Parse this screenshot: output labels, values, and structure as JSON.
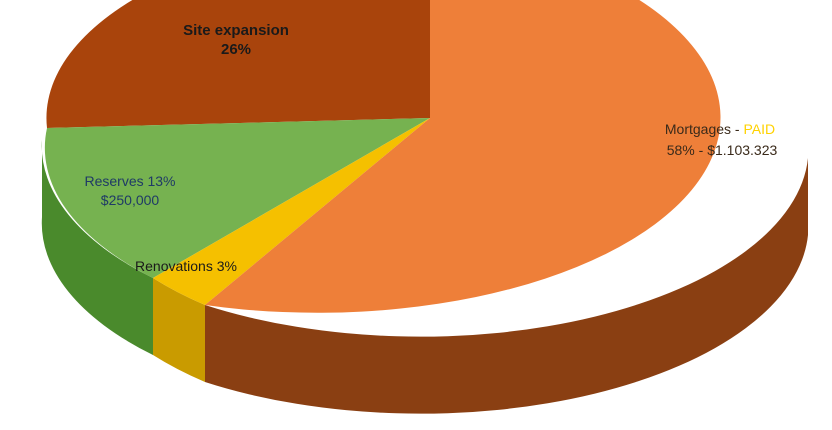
{
  "chart_data": {
    "type": "pie",
    "style": "3d",
    "slices": [
      {
        "name": "Mortgages",
        "percent": 58,
        "value_label": "58% - $1.103.323",
        "status": "PAID",
        "separator": " - ",
        "color": "#ee7f39",
        "side_color": "#8a3f12"
      },
      {
        "name": "Renovations",
        "percent": 3,
        "label": "Renovations 3%",
        "color": "#f5c000",
        "side_color": "#c99b00"
      },
      {
        "name": "Reserves",
        "percent": 13,
        "label": "Reserves 13%",
        "value_label": "$250,000",
        "color": "#76b250",
        "side_color": "#4a8a2c"
      },
      {
        "name": "Site expansion",
        "percent": 26,
        "label": "Site expansion",
        "value_label": "26%",
        "color": "#a9440c",
        "side_color": "#6e2b06"
      }
    ]
  }
}
